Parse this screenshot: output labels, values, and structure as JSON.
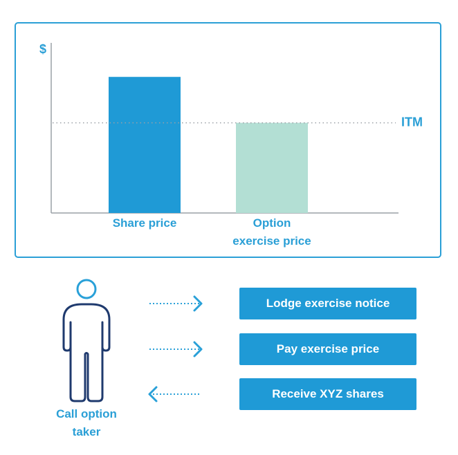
{
  "chart_data": {
    "type": "bar",
    "y_label": "$",
    "categories": [
      "Share price",
      "Option\nexercise price"
    ],
    "values": [
      80,
      53
    ],
    "colors": [
      "#1f9ad6",
      "#b3dfd4"
    ],
    "ylim": [
      0,
      100
    ],
    "threshold": {
      "label": "ITM",
      "value": 53
    }
  },
  "actor": {
    "label": "Call option\ntaker"
  },
  "steps": [
    {
      "label": "Lodge exercise notice",
      "direction": "right"
    },
    {
      "label": "Pay exercise price",
      "direction": "right"
    },
    {
      "label": "Receive XYZ shares",
      "direction": "left"
    }
  ]
}
